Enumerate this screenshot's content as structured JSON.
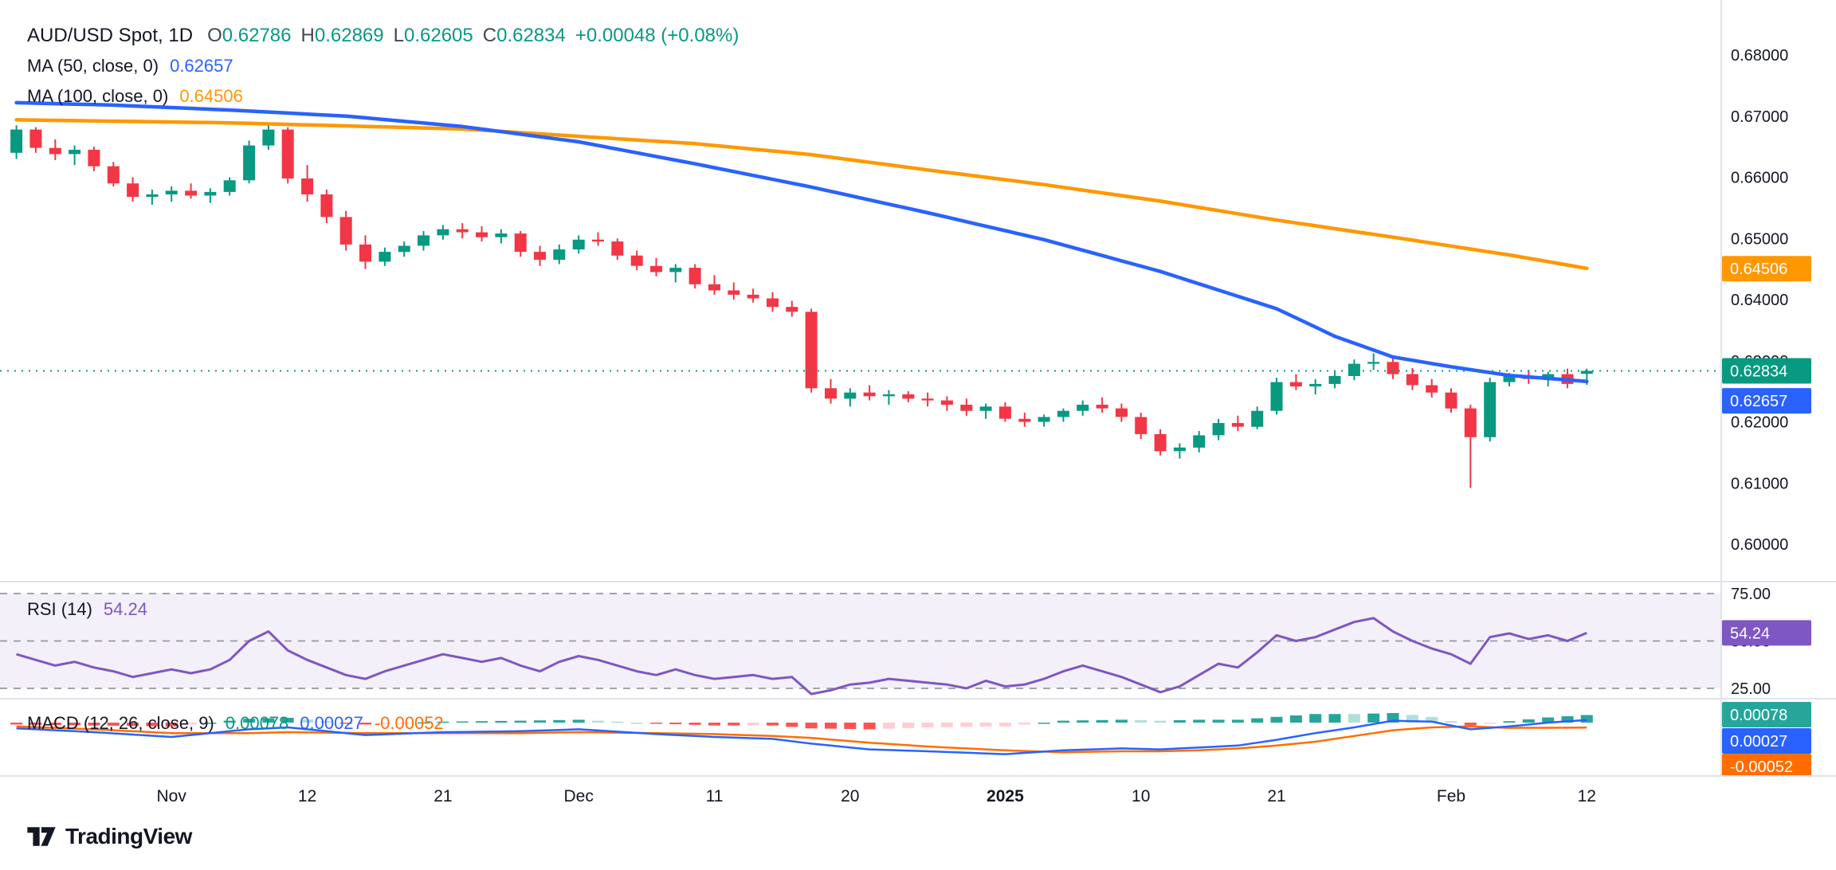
{
  "header": {
    "symbol": "AUD/USD Spot, 1D",
    "ohlc": [
      {
        "k": "O",
        "v": "0.62786"
      },
      {
        "k": "H",
        "v": "0.62869"
      },
      {
        "k": "L",
        "v": "0.62605"
      },
      {
        "k": "C",
        "v": "0.62834"
      }
    ],
    "change": "+0.00048 (+0.08%)",
    "ma50_label": "MA (50, close, 0)",
    "ma50_value": "0.62657",
    "ma100_label": "MA (100, close, 0)",
    "ma100_value": "0.64506"
  },
  "rsi_pane": {
    "label": "RSI (14)",
    "value": "54.24"
  },
  "macd_pane": {
    "label": "MACD (12, 26, close, 9)",
    "hist_value": "0.00078",
    "macd_value": "0.00027",
    "signal_value": "-0.00052"
  },
  "footer": {
    "brand": "TradingView"
  },
  "colors": {
    "up": "#089981",
    "down": "#f23645",
    "ma50": "#2962ff",
    "ma100": "#ff9800",
    "rsi": "#7e57c2",
    "rsi_band": "rgba(126,87,194,0.09)",
    "rsi_guide": "#9598a1",
    "macd_line": "#2962ff",
    "signal_line": "#ff6d00",
    "hist_up": "#26a69a",
    "hist_up_weak": "#b2dfdb",
    "hist_down": "#ff5252",
    "hist_down_weak": "#ffcdd2",
    "axis_text": "#131722",
    "separator": "#e0e3eb"
  },
  "chart_data": {
    "type": "candlestick",
    "symbol": "AUD/USD Spot",
    "interval": "1D",
    "last_close": 0.62834,
    "ohlc_last": {
      "open": 0.62786,
      "high": 0.62869,
      "low": 0.62605,
      "close": 0.62834,
      "change": "+0.00048 (+0.08%)"
    },
    "price_axis": {
      "min": 0.595,
      "max": 0.6815,
      "decimals": 5,
      "ticks": [
        0.68,
        0.67,
        0.66,
        0.65,
        0.64,
        0.63,
        0.62,
        0.61,
        0.6
      ]
    },
    "time_ticks": [
      {
        "index": 8,
        "label": "Nov"
      },
      {
        "index": 15,
        "label": "12"
      },
      {
        "index": 22,
        "label": "21"
      },
      {
        "index": 29,
        "label": "Dec"
      },
      {
        "index": 36,
        "label": "11"
      },
      {
        "index": 43,
        "label": "20"
      },
      {
        "index": 51,
        "label": "2025",
        "bold": true
      },
      {
        "index": 58,
        "label": "10"
      },
      {
        "index": 65,
        "label": "21"
      },
      {
        "index": 74,
        "label": "Feb"
      },
      {
        "index": 81,
        "label": "12"
      }
    ],
    "candles": [
      [
        0.664,
        0.6685,
        0.663,
        0.6678
      ],
      [
        0.6678,
        0.6682,
        0.664,
        0.6648
      ],
      [
        0.6648,
        0.6662,
        0.6628,
        0.6638
      ],
      [
        0.6638,
        0.6652,
        0.662,
        0.6645
      ],
      [
        0.6645,
        0.665,
        0.661,
        0.6618
      ],
      [
        0.6618,
        0.6625,
        0.6585,
        0.659
      ],
      [
        0.659,
        0.66,
        0.656,
        0.6568
      ],
      [
        0.6568,
        0.658,
        0.6555,
        0.6572
      ],
      [
        0.6572,
        0.6585,
        0.656,
        0.6578
      ],
      [
        0.6578,
        0.659,
        0.6565,
        0.657
      ],
      [
        0.657,
        0.6582,
        0.6558,
        0.6576
      ],
      [
        0.6576,
        0.66,
        0.657,
        0.6595
      ],
      [
        0.6595,
        0.666,
        0.659,
        0.6652
      ],
      [
        0.6652,
        0.6685,
        0.6645,
        0.6678
      ],
      [
        0.6678,
        0.6682,
        0.659,
        0.6598
      ],
      [
        0.6598,
        0.662,
        0.656,
        0.6572
      ],
      [
        0.6572,
        0.658,
        0.6525,
        0.6535
      ],
      [
        0.6535,
        0.6545,
        0.648,
        0.649
      ],
      [
        0.649,
        0.6505,
        0.645,
        0.6462
      ],
      [
        0.6462,
        0.6485,
        0.6455,
        0.6478
      ],
      [
        0.6478,
        0.6495,
        0.647,
        0.6488
      ],
      [
        0.6488,
        0.6512,
        0.648,
        0.6505
      ],
      [
        0.6505,
        0.6522,
        0.6498,
        0.6515
      ],
      [
        0.6515,
        0.6525,
        0.65,
        0.651
      ],
      [
        0.651,
        0.652,
        0.6495,
        0.6502
      ],
      [
        0.6502,
        0.6515,
        0.6492,
        0.6508
      ],
      [
        0.6508,
        0.6512,
        0.647,
        0.6478
      ],
      [
        0.6478,
        0.6488,
        0.6455,
        0.6465
      ],
      [
        0.6465,
        0.649,
        0.6458,
        0.6482
      ],
      [
        0.6482,
        0.6505,
        0.6475,
        0.6498
      ],
      [
        0.6498,
        0.651,
        0.6488,
        0.6495
      ],
      [
        0.6495,
        0.65,
        0.6465,
        0.6472
      ],
      [
        0.6472,
        0.648,
        0.6448,
        0.6455
      ],
      [
        0.6455,
        0.6468,
        0.6438,
        0.6445
      ],
      [
        0.6445,
        0.6458,
        0.6428,
        0.6452
      ],
      [
        0.6452,
        0.6458,
        0.6418,
        0.6425
      ],
      [
        0.6425,
        0.644,
        0.6408,
        0.6415
      ],
      [
        0.6415,
        0.6428,
        0.64,
        0.6408
      ],
      [
        0.6408,
        0.6418,
        0.6395,
        0.6402
      ],
      [
        0.6402,
        0.6412,
        0.638,
        0.6388
      ],
      [
        0.6388,
        0.6398,
        0.6372,
        0.638
      ],
      [
        0.638,
        0.6385,
        0.6248,
        0.6255
      ],
      [
        0.6255,
        0.627,
        0.623,
        0.6238
      ],
      [
        0.6238,
        0.6255,
        0.6225,
        0.6248
      ],
      [
        0.6248,
        0.626,
        0.6235,
        0.6242
      ],
      [
        0.6242,
        0.6252,
        0.6228,
        0.6245
      ],
      [
        0.6245,
        0.625,
        0.6232,
        0.6238
      ],
      [
        0.6238,
        0.6248,
        0.6225,
        0.6235
      ],
      [
        0.6235,
        0.6242,
        0.6218,
        0.6228
      ],
      [
        0.6228,
        0.6238,
        0.621,
        0.6218
      ],
      [
        0.6218,
        0.623,
        0.6205,
        0.6225
      ],
      [
        0.6225,
        0.6232,
        0.62,
        0.6205
      ],
      [
        0.6205,
        0.6215,
        0.6192,
        0.62
      ],
      [
        0.62,
        0.6212,
        0.6192,
        0.6208
      ],
      [
        0.6208,
        0.6222,
        0.62,
        0.6218
      ],
      [
        0.6218,
        0.6235,
        0.621,
        0.6228
      ],
      [
        0.6228,
        0.624,
        0.6215,
        0.6222
      ],
      [
        0.6222,
        0.623,
        0.62,
        0.6208
      ],
      [
        0.6208,
        0.6215,
        0.6172,
        0.618
      ],
      [
        0.618,
        0.6188,
        0.6145,
        0.6152
      ],
      [
        0.6152,
        0.6165,
        0.614,
        0.6158
      ],
      [
        0.6158,
        0.6185,
        0.615,
        0.6178
      ],
      [
        0.6178,
        0.6205,
        0.617,
        0.6198
      ],
      [
        0.6198,
        0.621,
        0.6185,
        0.6192
      ],
      [
        0.6192,
        0.6225,
        0.6188,
        0.6218
      ],
      [
        0.6218,
        0.6272,
        0.6212,
        0.6265
      ],
      [
        0.6265,
        0.6278,
        0.6252,
        0.6258
      ],
      [
        0.6258,
        0.627,
        0.6245,
        0.6262
      ],
      [
        0.6262,
        0.6282,
        0.6255,
        0.6275
      ],
      [
        0.6275,
        0.6302,
        0.6268,
        0.6295
      ],
      [
        0.6295,
        0.6312,
        0.6285,
        0.6298
      ],
      [
        0.6298,
        0.6305,
        0.627,
        0.6278
      ],
      [
        0.6278,
        0.6288,
        0.6252,
        0.626
      ],
      [
        0.626,
        0.627,
        0.624,
        0.6248
      ],
      [
        0.6248,
        0.6255,
        0.6215,
        0.6222
      ],
      [
        0.6222,
        0.6228,
        0.6092,
        0.6175
      ],
      [
        0.6175,
        0.6272,
        0.6168,
        0.6265
      ],
      [
        0.6265,
        0.628,
        0.6258,
        0.6275
      ],
      [
        0.6275,
        0.6285,
        0.6262,
        0.627
      ],
      [
        0.627,
        0.6282,
        0.6258,
        0.6278
      ],
      [
        0.6278,
        0.6287,
        0.6255,
        0.6262
      ],
      [
        0.62786,
        0.62869,
        0.62605,
        0.62834
      ]
    ],
    "ma50": {
      "label": "MA (50, close, 0)",
      "value": 0.62657,
      "points": [
        [
          0,
          0.6722
        ],
        [
          5,
          0.6718
        ],
        [
          11,
          0.671
        ],
        [
          17,
          0.67
        ],
        [
          23,
          0.6683
        ],
        [
          29,
          0.6658
        ],
        [
          35,
          0.6622
        ],
        [
          41,
          0.6584
        ],
        [
          47,
          0.6542
        ],
        [
          53,
          0.6498
        ],
        [
          59,
          0.6446
        ],
        [
          65,
          0.6385
        ],
        [
          68,
          0.634
        ],
        [
          71,
          0.6306
        ],
        [
          74,
          0.629
        ],
        [
          77,
          0.6276
        ],
        [
          81,
          0.6266
        ]
      ]
    },
    "ma100": {
      "label": "MA (100, close, 0)",
      "value": 0.64506,
      "points": [
        [
          0,
          0.6694
        ],
        [
          11,
          0.6689
        ],
        [
          23,
          0.6679
        ],
        [
          35,
          0.6655
        ],
        [
          41,
          0.6637
        ],
        [
          47,
          0.6612
        ],
        [
          53,
          0.6588
        ],
        [
          59,
          0.6561
        ],
        [
          65,
          0.653
        ],
        [
          71,
          0.6502
        ],
        [
          77,
          0.6473
        ],
        [
          81,
          0.6451
        ]
      ]
    },
    "rsi": {
      "label": "RSI (14)",
      "value": 54.24,
      "upper": 75,
      "middle": 50,
      "lower": 25,
      "values": [
        43,
        40,
        37,
        39,
        36,
        34,
        31,
        33,
        35,
        33,
        35,
        40,
        50,
        55,
        45,
        40,
        36,
        32,
        30,
        34,
        37,
        40,
        43,
        41,
        39,
        41,
        37,
        34,
        39,
        42,
        40,
        37,
        34,
        32,
        35,
        32,
        30,
        31,
        32,
        30,
        31,
        22,
        24,
        27,
        28,
        30,
        29,
        28,
        27,
        25,
        29,
        26,
        27,
        30,
        34,
        37,
        34,
        31,
        27,
        23,
        26,
        32,
        38,
        36,
        44,
        53,
        50,
        52,
        56,
        60,
        62,
        55,
        50,
        46,
        43,
        38,
        52,
        54,
        51,
        53,
        50,
        54.24
      ]
    },
    "macd": {
      "label": "MACD (12, 26, close, 9)",
      "hist": 0.00078,
      "macd": 0.00027,
      "signal": -0.00052,
      "macd_points": [
        [
          0,
          -0.0006
        ],
        [
          4,
          -0.001
        ],
        [
          8,
          -0.0015
        ],
        [
          12,
          -0.0007
        ],
        [
          14,
          -0.0005
        ],
        [
          18,
          -0.0013
        ],
        [
          22,
          -0.001
        ],
        [
          26,
          -0.0009
        ],
        [
          29,
          -0.0007
        ],
        [
          33,
          -0.0012
        ],
        [
          36,
          -0.0015
        ],
        [
          39,
          -0.0017
        ],
        [
          41,
          -0.0022
        ],
        [
          44,
          -0.0028
        ],
        [
          47,
          -0.003
        ],
        [
          51,
          -0.0033
        ],
        [
          54,
          -0.0029
        ],
        [
          57,
          -0.0027
        ],
        [
          59,
          -0.0028
        ],
        [
          61,
          -0.0026
        ],
        [
          63,
          -0.0024
        ],
        [
          65,
          -0.0018
        ],
        [
          67,
          -0.0011
        ],
        [
          69,
          -0.0005
        ],
        [
          71,
          0.0002
        ],
        [
          73,
          0.0001
        ],
        [
          75,
          -0.0007
        ],
        [
          77,
          -0.0004
        ],
        [
          79,
          0.0
        ],
        [
          81,
          0.00027
        ]
      ],
      "signal_points": [
        [
          0,
          -0.0004
        ],
        [
          4,
          -0.0007
        ],
        [
          8,
          -0.0011
        ],
        [
          12,
          -0.0011
        ],
        [
          14,
          -0.001
        ],
        [
          18,
          -0.0011
        ],
        [
          22,
          -0.0011
        ],
        [
          26,
          -0.0011
        ],
        [
          29,
          -0.001
        ],
        [
          33,
          -0.0011
        ],
        [
          36,
          -0.0012
        ],
        [
          39,
          -0.0014
        ],
        [
          41,
          -0.0016
        ],
        [
          44,
          -0.0021
        ],
        [
          47,
          -0.0025
        ],
        [
          51,
          -0.0029
        ],
        [
          54,
          -0.0031
        ],
        [
          57,
          -0.003
        ],
        [
          59,
          -0.003
        ],
        [
          61,
          -0.0029
        ],
        [
          63,
          -0.0027
        ],
        [
          65,
          -0.0024
        ],
        [
          67,
          -0.002
        ],
        [
          69,
          -0.0014
        ],
        [
          71,
          -0.0008
        ],
        [
          73,
          -0.0005
        ],
        [
          75,
          -0.0004
        ],
        [
          77,
          -0.00055
        ],
        [
          79,
          -0.00054
        ],
        [
          81,
          -0.00052
        ]
      ]
    }
  }
}
